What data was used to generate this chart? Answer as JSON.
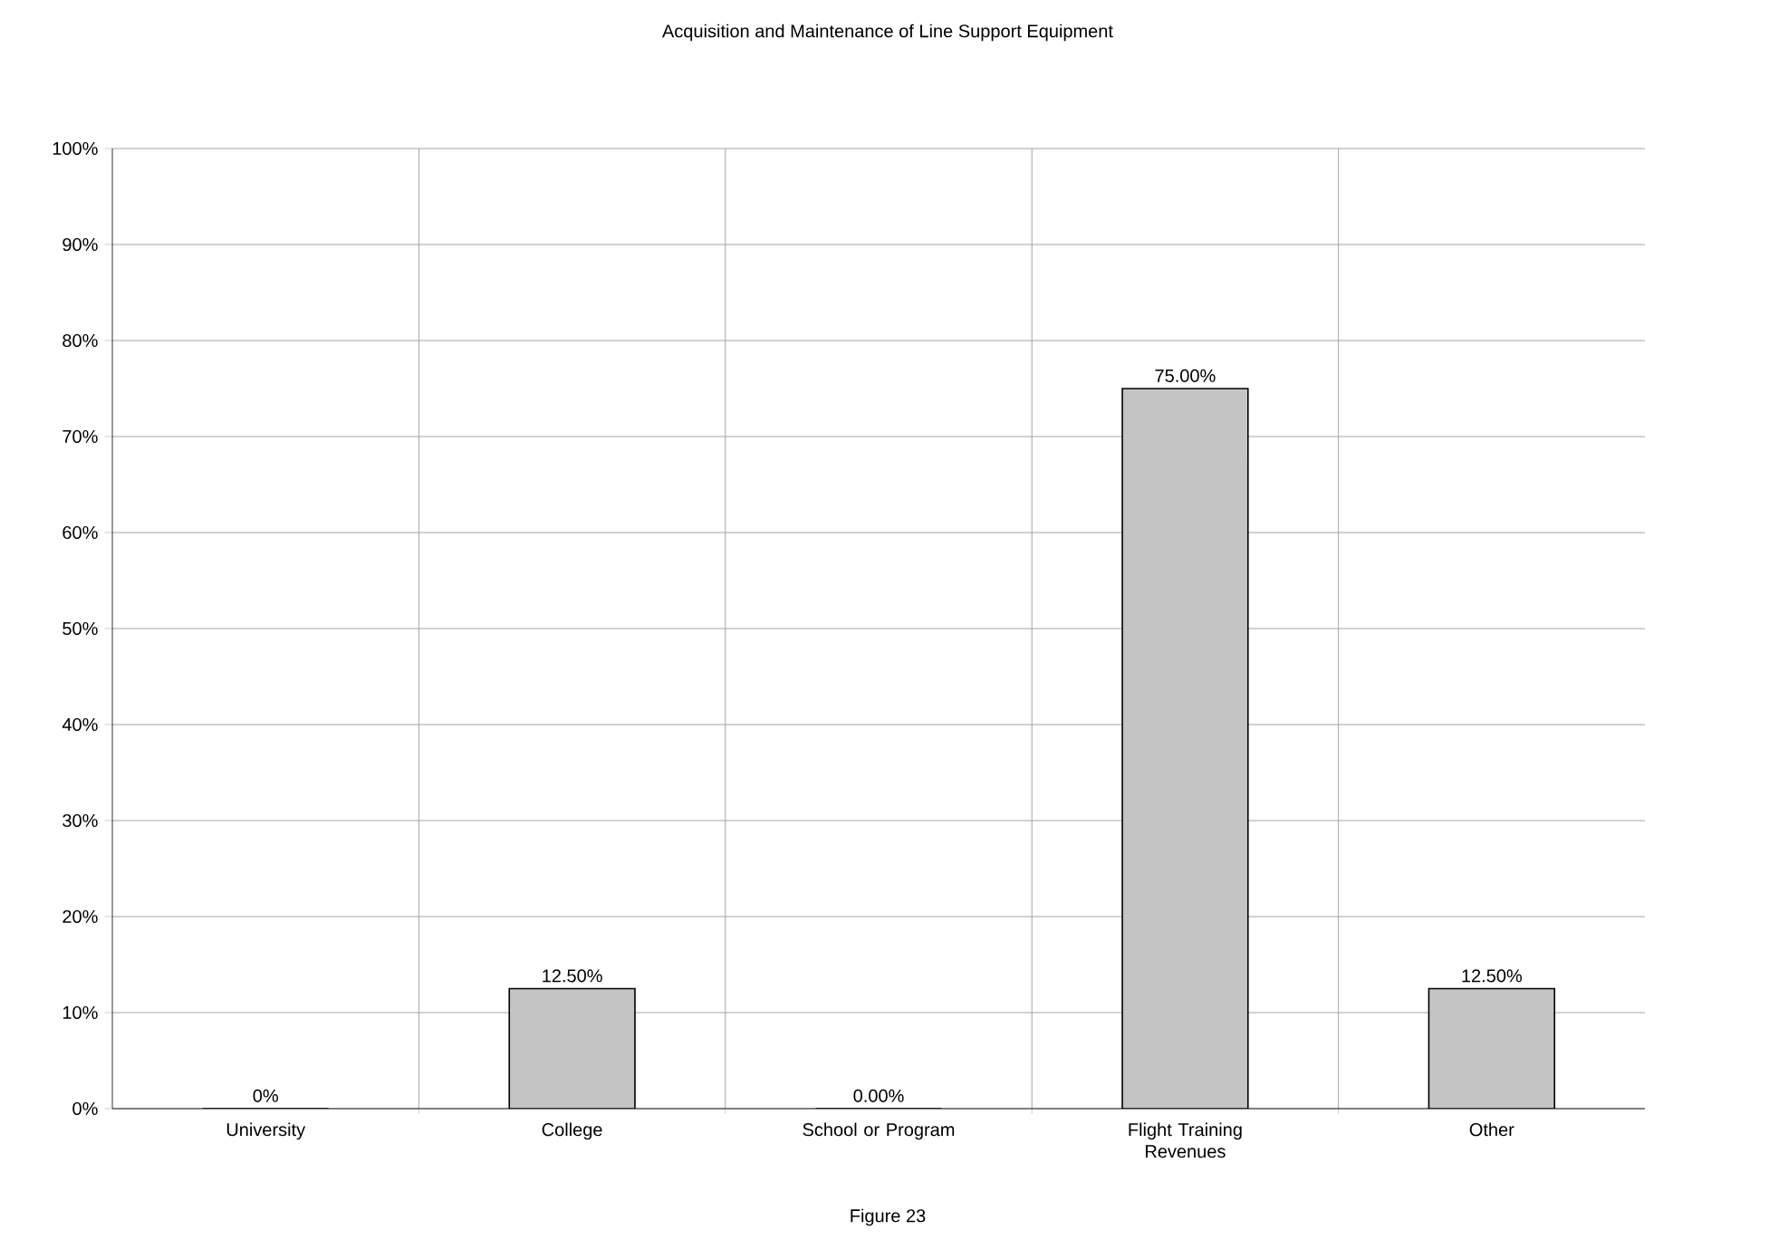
{
  "chart_data": {
    "type": "bar",
    "title": "Acquisition and Maintenance of Line Support Equipment",
    "categories": [
      "University",
      "College",
      "School or Program",
      "Flight Training Revenues",
      "Other"
    ],
    "values": [
      0,
      12.5,
      0,
      75,
      12.5
    ],
    "value_labels": [
      "0%",
      "12.50%",
      "0.00%",
      "75.00%",
      "12.50%"
    ],
    "color": "#c4c4c4",
    "ylim": [
      0,
      100
    ],
    "yticks": [
      {
        "value": 0,
        "label": "0%"
      },
      {
        "value": 10,
        "label": "10%"
      },
      {
        "value": 20,
        "label": "20%"
      },
      {
        "value": 30,
        "label": "30%"
      },
      {
        "value": 40,
        "label": "40%"
      },
      {
        "value": 50,
        "label": "50%"
      },
      {
        "value": 60,
        "label": "60%"
      },
      {
        "value": 70,
        "label": "70%"
      },
      {
        "value": 80,
        "label": "80%"
      },
      {
        "value": 90,
        "label": "90%"
      },
      {
        "value": 100,
        "label": "100%"
      }
    ],
    "grid": true,
    "annotations": [
      "Figure 23"
    ]
  }
}
